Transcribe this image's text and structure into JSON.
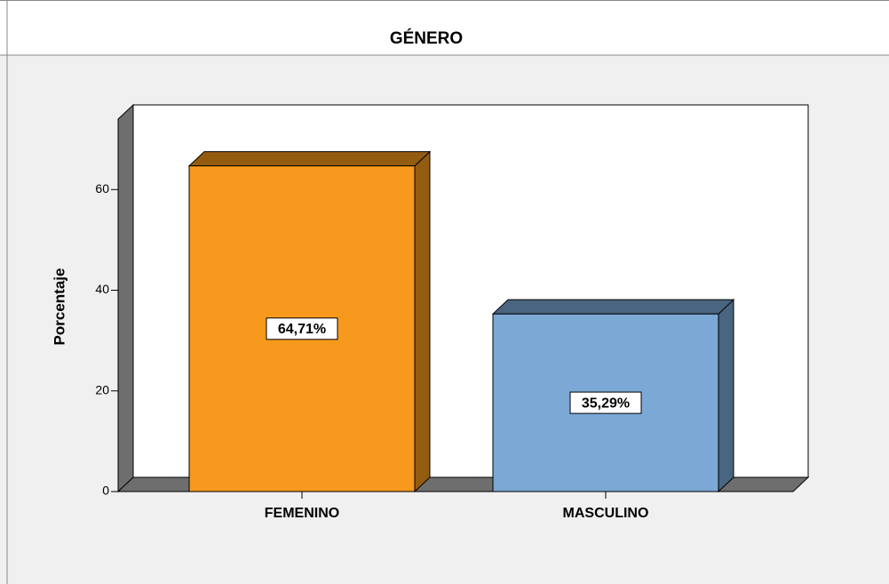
{
  "chart_data": {
    "type": "bar",
    "title": "GÉNERO",
    "y_label": "Porcentaje",
    "categories": [
      "FEMENINO",
      "MASCULINO"
    ],
    "values": [
      64.71,
      35.29
    ],
    "value_labels": [
      "64,71%",
      "35,29%"
    ],
    "colors": [
      "#f7991c",
      "#7ba8d5"
    ],
    "ylim": [
      0,
      74
    ],
    "yticks": [
      0,
      20,
      40,
      60
    ]
  }
}
